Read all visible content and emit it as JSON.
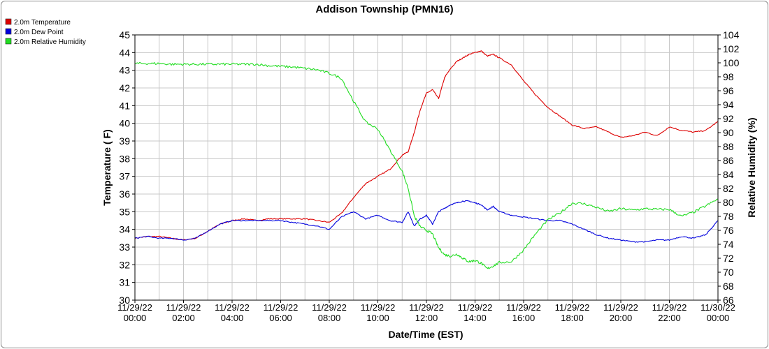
{
  "chart_data": {
    "type": "line",
    "title": "Addison Township (PMN16)",
    "xlabel": "Date/Time (EST)",
    "ylabel_left": "Temperature ( F)",
    "ylabel_right": "Relative Humidity (%)",
    "ylim_left": [
      30,
      45
    ],
    "ylim_right": [
      66,
      104
    ],
    "xlim_hours": [
      0,
      24
    ],
    "grid": true,
    "legend_position": "top-left",
    "x_tick_labels": [
      {
        "hour": 0,
        "date": "11/29/22",
        "time": "00:00"
      },
      {
        "hour": 2,
        "date": "11/29/22",
        "time": "02:00"
      },
      {
        "hour": 4,
        "date": "11/29/22",
        "time": "04:00"
      },
      {
        "hour": 6,
        "date": "11/29/22",
        "time": "06:00"
      },
      {
        "hour": 8,
        "date": "11/29/22",
        "time": "08:00"
      },
      {
        "hour": 10,
        "date": "11/29/22",
        "time": "10:00"
      },
      {
        "hour": 12,
        "date": "11/29/22",
        "time": "12:00"
      },
      {
        "hour": 14,
        "date": "11/29/22",
        "time": "14:00"
      },
      {
        "hour": 16,
        "date": "11/29/22",
        "time": "16:00"
      },
      {
        "hour": 18,
        "date": "11/29/22",
        "time": "18:00"
      },
      {
        "hour": 20,
        "date": "11/29/22",
        "time": "20:00"
      },
      {
        "hour": 22,
        "date": "11/29/22",
        "time": "22:00"
      },
      {
        "hour": 24,
        "date": "11/30/22",
        "time": "00:00"
      }
    ],
    "y_left_ticks": [
      30,
      31,
      32,
      33,
      34,
      35,
      36,
      37,
      38,
      39,
      40,
      41,
      42,
      43,
      44,
      45
    ],
    "y_right_ticks": [
      66,
      68,
      70,
      72,
      74,
      76,
      78,
      80,
      82,
      84,
      86,
      88,
      90,
      92,
      94,
      96,
      98,
      100,
      102,
      104
    ],
    "series": [
      {
        "name": "2.0m Temperature",
        "color": "#dd0000",
        "axis": "left",
        "x": [
          0,
          0.5,
          1,
          1.5,
          2,
          2.5,
          3,
          3.5,
          4,
          4.5,
          5,
          5.5,
          6,
          6.5,
          7,
          7.5,
          8,
          8.5,
          9,
          9.5,
          10,
          10.5,
          11,
          11.25,
          11.5,
          11.75,
          12,
          12.25,
          12.5,
          12.75,
          13,
          13.25,
          13.5,
          13.75,
          14,
          14.25,
          14.5,
          14.75,
          15,
          15.5,
          16,
          16.5,
          17,
          17.5,
          18,
          18.5,
          19,
          19.5,
          20,
          20.5,
          21,
          21.5,
          22,
          22.5,
          23,
          23.5,
          24
        ],
        "values": [
          33.5,
          33.6,
          33.6,
          33.5,
          33.4,
          33.5,
          33.9,
          34.3,
          34.5,
          34.6,
          34.5,
          34.6,
          34.6,
          34.6,
          34.6,
          34.5,
          34.4,
          34.9,
          35.8,
          36.6,
          37.0,
          37.4,
          38.2,
          38.4,
          39.5,
          40.8,
          41.7,
          41.9,
          41.4,
          42.6,
          43.1,
          43.5,
          43.7,
          43.9,
          44.0,
          44.1,
          43.8,
          43.9,
          43.7,
          43.3,
          42.4,
          41.6,
          40.9,
          40.4,
          39.9,
          39.7,
          39.8,
          39.5,
          39.2,
          39.3,
          39.5,
          39.3,
          39.8,
          39.6,
          39.5,
          39.6,
          40.1
        ]
      },
      {
        "name": "2.0m Dew Point",
        "color": "#0000dd",
        "axis": "left",
        "x": [
          0,
          0.5,
          1,
          1.5,
          2,
          2.5,
          3,
          3.5,
          4,
          4.5,
          5,
          5.5,
          6,
          6.5,
          7,
          7.5,
          8,
          8.5,
          9,
          9.5,
          10,
          10.5,
          11,
          11.25,
          11.5,
          11.75,
          12,
          12.25,
          12.5,
          12.75,
          13,
          13.25,
          13.5,
          13.75,
          14,
          14.25,
          14.5,
          14.75,
          15,
          15.5,
          16,
          16.5,
          17,
          17.5,
          18,
          18.5,
          19,
          19.5,
          20,
          20.5,
          21,
          21.5,
          22,
          22.5,
          23,
          23.5,
          24
        ],
        "values": [
          33.5,
          33.6,
          33.5,
          33.5,
          33.4,
          33.5,
          33.9,
          34.3,
          34.5,
          34.5,
          34.5,
          34.5,
          34.5,
          34.4,
          34.3,
          34.2,
          34.0,
          34.7,
          35.0,
          34.6,
          34.8,
          34.5,
          34.4,
          35.0,
          34.2,
          34.6,
          34.8,
          34.3,
          35.0,
          35.2,
          35.4,
          35.5,
          35.6,
          35.6,
          35.5,
          35.4,
          35.1,
          35.3,
          35.0,
          34.8,
          34.7,
          34.6,
          34.5,
          34.5,
          34.3,
          34.0,
          33.7,
          33.5,
          33.4,
          33.3,
          33.3,
          33.4,
          33.4,
          33.6,
          33.5,
          33.7,
          34.5
        ]
      },
      {
        "name": "2.0m Relative Humidity",
        "color": "#22dd22",
        "axis": "right",
        "x": [
          0,
          0.5,
          1,
          1.5,
          2,
          2.5,
          3,
          3.5,
          4,
          4.5,
          5,
          5.5,
          6,
          6.5,
          7,
          7.5,
          8,
          8.5,
          9,
          9.5,
          10,
          10.5,
          11,
          11.25,
          11.5,
          11.75,
          12,
          12.25,
          12.5,
          12.75,
          13,
          13.25,
          13.5,
          13.75,
          14,
          14.25,
          14.5,
          14.75,
          15,
          15.5,
          16,
          16.5,
          17,
          17.5,
          18,
          18.5,
          19,
          19.5,
          20,
          20.5,
          21,
          21.5,
          22,
          22.5,
          23,
          23.5,
          24
        ],
        "values": [
          99.9,
          99.9,
          99.9,
          99.8,
          99.8,
          99.8,
          99.8,
          99.8,
          99.8,
          99.8,
          99.8,
          99.6,
          99.5,
          99.4,
          99.2,
          99.0,
          98.5,
          97.8,
          94.5,
          91.5,
          90.5,
          87.5,
          84.5,
          82.0,
          78.0,
          76.5,
          76.0,
          75.5,
          73.5,
          72.5,
          72.3,
          72.6,
          72.0,
          71.5,
          71.7,
          71.3,
          70.5,
          70.9,
          71.4,
          71.5,
          73.2,
          75.5,
          77.5,
          78.5,
          79.9,
          79.8,
          79.3,
          78.7,
          79.1,
          78.9,
          79.1,
          79.0,
          79.0,
          78.0,
          78.6,
          79.5,
          80.5
        ]
      }
    ]
  }
}
